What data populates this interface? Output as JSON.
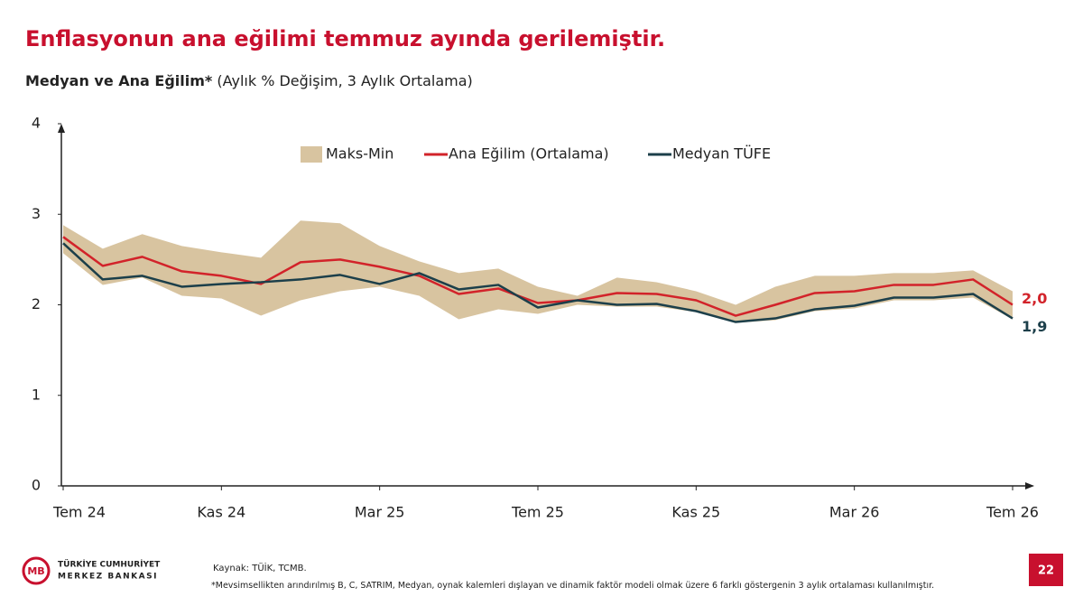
{
  "chart_data": {
    "type": "line",
    "title": "Enflasyonun ana eğilimi temmuz ayında gerilemiştir.",
    "subtitle_bold": "Medyan ve Ana Eğilim*",
    "subtitle": "(Aylık % Değişim, 3 Aylık Ortalama)",
    "categories": [
      "Tem 24",
      null,
      null,
      null,
      "Kas 24",
      null,
      null,
      null,
      "Mar 25",
      null,
      null,
      null,
      "Tem 25",
      null,
      null,
      null,
      "Kas 25",
      null,
      null,
      null,
      "Mar 26",
      null,
      null,
      null,
      "Tem 26"
    ],
    "band": {
      "name": "Maks-Min",
      "color": "#d8c4a0",
      "upper": [
        2.88,
        2.62,
        2.78,
        2.65,
        2.58,
        2.52,
        2.93,
        2.9,
        2.65,
        2.48,
        2.35,
        2.4,
        2.2,
        2.1,
        2.3,
        2.25,
        2.15,
        2.0,
        2.2,
        2.32,
        2.32,
        2.35,
        2.35,
        2.38,
        2.15
      ],
      "lower": [
        2.57,
        2.22,
        2.3,
        2.1,
        2.07,
        1.88,
        2.05,
        2.15,
        2.2,
        2.1,
        1.84,
        1.95,
        1.9,
        2.0,
        1.98,
        1.98,
        1.92,
        1.8,
        1.83,
        1.93,
        1.96,
        2.05,
        2.05,
        2.08,
        1.84
      ]
    },
    "series": [
      {
        "name": "Ana Eğilim (Ortalama)",
        "color": "#d2232a",
        "values": [
          2.75,
          2.43,
          2.53,
          2.37,
          2.32,
          2.23,
          2.47,
          2.5,
          2.42,
          2.32,
          2.12,
          2.18,
          2.02,
          2.05,
          2.13,
          2.12,
          2.05,
          1.88,
          2.0,
          2.13,
          2.15,
          2.22,
          2.22,
          2.28,
          2.0
        ],
        "value_labels": [
          null,
          null,
          null,
          null,
          null,
          null,
          null,
          null,
          null,
          null,
          null,
          null,
          null,
          null,
          null,
          null,
          null,
          null,
          null,
          null,
          null,
          null,
          null,
          null,
          "2,0"
        ]
      },
      {
        "name": "Medyan TÜFE",
        "color": "#1c3f4a",
        "values": [
          2.68,
          2.28,
          2.32,
          2.2,
          2.23,
          2.25,
          2.28,
          2.33,
          2.23,
          2.35,
          2.17,
          2.22,
          1.97,
          2.05,
          2.0,
          2.01,
          1.93,
          1.81,
          1.85,
          1.95,
          1.99,
          2.08,
          2.08,
          2.12,
          1.85
        ],
        "value_labels": [
          null,
          null,
          null,
          null,
          null,
          null,
          null,
          null,
          null,
          null,
          null,
          null,
          null,
          null,
          null,
          null,
          null,
          null,
          null,
          null,
          null,
          null,
          null,
          null,
          "1,9"
        ]
      }
    ],
    "ylim": [
      0,
      4
    ],
    "yticks": [
      0,
      1,
      2,
      3,
      4
    ],
    "grid": false
  },
  "footer": {
    "bank_line1": "TÜRKİYE CUMHURİYET",
    "bank_line2": "MERKEZ BANKASI",
    "source": "Kaynak: TÜİK, TCMB.",
    "note": "*Mevsimsellikten arındırılmış B, C, SATRIM, Medyan, oynak kalemleri dışlayan ve dinamik faktör modeli olmak üzere 6 farklı göstergenin 3 aylık ortalaması kullanılmıştır.",
    "page": "22"
  }
}
